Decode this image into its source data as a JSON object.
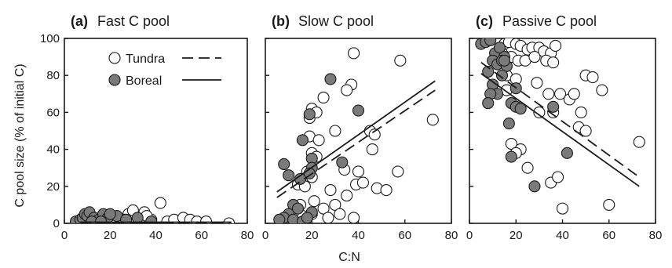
{
  "figure": {
    "ylabel": "C pool size (% of initial C)",
    "xlabel": "C:N"
  },
  "legend": [
    {
      "label": "Tundra",
      "marker": "open-circle",
      "line": "dashed"
    },
    {
      "label": "Boreal",
      "marker": "filled-circle",
      "line": "solid"
    }
  ],
  "colors": {
    "boreal_fill": "#7a7a7a",
    "tundra_fill": "#ffffff",
    "ink": "#1a1a1a"
  },
  "chart_data": [
    {
      "type": "scatter",
      "panel_label": "(a)",
      "title": "Fast C pool",
      "xlim": [
        0,
        80
      ],
      "ylim": [
        0,
        100
      ],
      "xticks": [
        0,
        20,
        40,
        60,
        80
      ],
      "yticks": [
        0,
        20,
        40,
        60,
        80,
        100
      ],
      "show_yticklabels": true,
      "legend_location": "top-center",
      "series": [
        {
          "name": "Tundra",
          "marker": "open",
          "points": [
            [
              9,
              2
            ],
            [
              12,
              3
            ],
            [
              14,
              1
            ],
            [
              17,
              4
            ],
            [
              20,
              2
            ],
            [
              22,
              3
            ],
            [
              25,
              1
            ],
            [
              28,
              5
            ],
            [
              30,
              7
            ],
            [
              33,
              3
            ],
            [
              35,
              6
            ],
            [
              38,
              2
            ],
            [
              42,
              11
            ],
            [
              45,
              1
            ],
            [
              48,
              2
            ],
            [
              52,
              3
            ],
            [
              55,
              2
            ],
            [
              58,
              1
            ],
            [
              62,
              1
            ],
            [
              72,
              0
            ],
            [
              18,
              1
            ],
            [
              26,
              2
            ],
            [
              36,
              4
            ]
          ]
        },
        {
          "name": "Boreal",
          "marker": "filled",
          "points": [
            [
              5,
              1
            ],
            [
              7,
              2
            ],
            [
              8,
              3
            ],
            [
              9,
              5
            ],
            [
              10,
              4
            ],
            [
              11,
              6
            ],
            [
              13,
              3
            ],
            [
              15,
              2
            ],
            [
              17,
              5
            ],
            [
              19,
              3
            ],
            [
              23,
              4
            ],
            [
              27,
              2
            ],
            [
              32,
              3
            ],
            [
              38,
              1
            ],
            [
              12,
              1
            ],
            [
              20,
              5
            ],
            [
              16,
              1
            ]
          ]
        },
        {
          "name": "Tundra fit",
          "line": "dashed",
          "line_points": [
            [
              7,
              0.4
            ],
            [
              73,
              0.4
            ]
          ]
        },
        {
          "name": "Boreal fit",
          "line": "solid",
          "line_points": [
            [
              7,
              0.6
            ],
            [
              73,
              0.6
            ]
          ]
        }
      ]
    },
    {
      "type": "scatter",
      "panel_label": "(b)",
      "title": "Slow C pool",
      "xlim": [
        0,
        80
      ],
      "ylim": [
        0,
        100
      ],
      "xticks": [
        0,
        20,
        40,
        60,
        80
      ],
      "yticks": [
        0,
        20,
        40,
        60,
        80,
        100
      ],
      "show_yticklabels": false,
      "series": [
        {
          "name": "Tundra",
          "marker": "open",
          "points": [
            [
              38,
              92
            ],
            [
              58,
              88
            ],
            [
              37,
              75
            ],
            [
              35,
              72
            ],
            [
              25,
              68
            ],
            [
              19,
              57
            ],
            [
              20,
              62
            ],
            [
              22,
              60
            ],
            [
              30,
              50
            ],
            [
              45,
              50
            ],
            [
              47,
              48
            ],
            [
              46,
              40
            ],
            [
              20,
              38
            ],
            [
              22,
              36
            ],
            [
              40,
              28
            ],
            [
              39,
              21
            ],
            [
              42,
              22
            ],
            [
              48,
              19
            ],
            [
              52,
              18
            ],
            [
              57,
              28
            ],
            [
              72,
              56
            ],
            [
              18,
              28
            ],
            [
              20,
              25
            ],
            [
              28,
              18
            ],
            [
              30,
              10
            ],
            [
              35,
              15
            ],
            [
              15,
              10
            ],
            [
              20,
              5
            ],
            [
              25,
              8
            ],
            [
              27,
              3
            ],
            [
              32,
              5
            ],
            [
              38,
              3
            ],
            [
              16,
              4
            ],
            [
              12,
              6
            ],
            [
              21,
              12
            ],
            [
              14,
              21
            ],
            [
              17,
              20
            ],
            [
              34,
              29
            ],
            [
              19,
              47
            ],
            [
              23,
              45
            ]
          ]
        },
        {
          "name": "Boreal",
          "marker": "filled",
          "points": [
            [
              28,
              78
            ],
            [
              40,
              61
            ],
            [
              19,
              59
            ],
            [
              16,
              45
            ],
            [
              20,
              35
            ],
            [
              20,
              30
            ],
            [
              19,
              27
            ],
            [
              15,
              24
            ],
            [
              8,
              32
            ],
            [
              10,
              26
            ],
            [
              33,
              33
            ],
            [
              12,
              10
            ],
            [
              14,
              8
            ],
            [
              10,
              5
            ],
            [
              8,
              3
            ],
            [
              6,
              2
            ],
            [
              12,
              2
            ],
            [
              16,
              1
            ],
            [
              20,
              6
            ],
            [
              18,
              3
            ]
          ]
        },
        {
          "name": "Tundra fit",
          "line": "dashed",
          "line_points": [
            [
              5,
              14
            ],
            [
              73,
              72
            ]
          ]
        },
        {
          "name": "Boreal fit",
          "line": "solid",
          "line_points": [
            [
              5,
              17
            ],
            [
              73,
              77
            ]
          ]
        }
      ]
    },
    {
      "type": "scatter",
      "panel_label": "(c)",
      "title": "Passive C pool",
      "xlim": [
        0,
        80
      ],
      "ylim": [
        0,
        100
      ],
      "xticks": [
        0,
        20,
        40,
        60,
        80
      ],
      "yticks": [
        0,
        20,
        40,
        60,
        80,
        100
      ],
      "show_yticklabels": false,
      "series": [
        {
          "name": "Tundra",
          "marker": "open",
          "points": [
            [
              15,
              97
            ],
            [
              17,
              98
            ],
            [
              20,
              97
            ],
            [
              22,
              96
            ],
            [
              25,
              94
            ],
            [
              27,
              95
            ],
            [
              30,
              95
            ],
            [
              32,
              93
            ],
            [
              35,
              92
            ],
            [
              37,
              96
            ],
            [
              18,
              90
            ],
            [
              21,
              88
            ],
            [
              24,
              88
            ],
            [
              28,
              90
            ],
            [
              33,
              88
            ],
            [
              36,
              87
            ],
            [
              16,
              80
            ],
            [
              20,
              78
            ],
            [
              29,
              76
            ],
            [
              34,
              70
            ],
            [
              39,
              70
            ],
            [
              43,
              67
            ],
            [
              36,
              60
            ],
            [
              48,
              60
            ],
            [
              50,
              80
            ],
            [
              53,
              79
            ],
            [
              57,
              72
            ],
            [
              47,
              52
            ],
            [
              50,
              50
            ],
            [
              18,
              43
            ],
            [
              22,
              40
            ],
            [
              20,
              38
            ],
            [
              25,
              30
            ],
            [
              35,
              22
            ],
            [
              38,
              25
            ],
            [
              40,
              8
            ],
            [
              60,
              10
            ],
            [
              73,
              44
            ],
            [
              16,
              72
            ],
            [
              30,
              60
            ],
            [
              45,
              70
            ],
            [
              14,
              92
            ]
          ]
        },
        {
          "name": "Boreal",
          "marker": "filled",
          "points": [
            [
              5,
              97
            ],
            [
              7,
              98
            ],
            [
              9,
              99
            ],
            [
              11,
              92
            ],
            [
              13,
              95
            ],
            [
              15,
              90
            ],
            [
              10,
              88
            ],
            [
              12,
              86
            ],
            [
              14,
              88
            ],
            [
              16,
              85
            ],
            [
              8,
              82
            ],
            [
              10,
              75
            ],
            [
              12,
              70
            ],
            [
              14,
              80
            ],
            [
              9,
              70
            ],
            [
              8,
              65
            ],
            [
              18,
              65
            ],
            [
              20,
              63
            ],
            [
              17,
              54
            ],
            [
              22,
              62
            ],
            [
              20,
              73
            ],
            [
              36,
              63
            ],
            [
              42,
              38
            ],
            [
              28,
              20
            ],
            [
              18,
              36
            ],
            [
              15,
              88
            ]
          ]
        },
        {
          "name": "Tundra fit",
          "line": "dashed",
          "line_points": [
            [
              5,
              87
            ],
            [
              73,
              25
            ]
          ]
        },
        {
          "name": "Boreal fit",
          "line": "solid",
          "line_points": [
            [
              5,
              81
            ],
            [
              73,
              20
            ]
          ]
        }
      ]
    }
  ]
}
